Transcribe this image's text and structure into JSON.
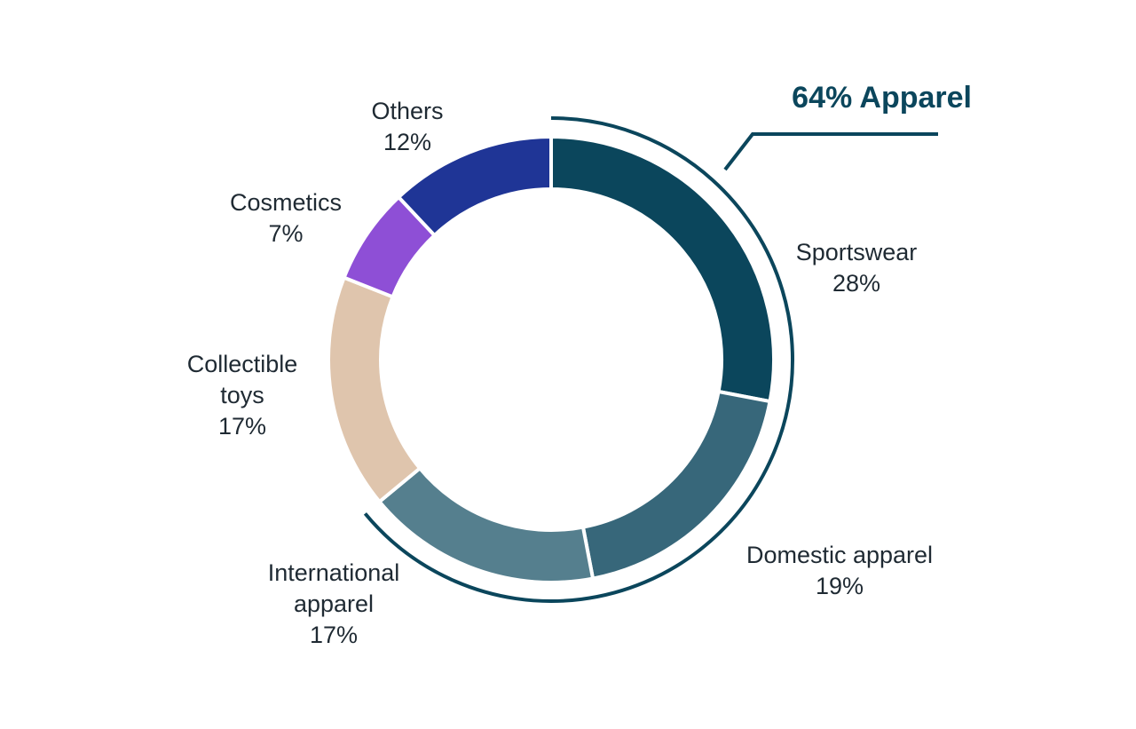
{
  "chart_data": {
    "type": "pie",
    "variant": "donut",
    "unit": "%",
    "slices": [
      {
        "label_lines": [
          "Sportswear"
        ],
        "value": 28,
        "value_label": "28%",
        "color": "#0b465c"
      },
      {
        "label_lines": [
          "Domestic apparel"
        ],
        "value": 19,
        "value_label": "19%",
        "color": "#37677a"
      },
      {
        "label_lines": [
          "International",
          "apparel"
        ],
        "value": 17,
        "value_label": "17%",
        "color": "#557f8e"
      },
      {
        "label_lines": [
          "Collectible",
          "toys"
        ],
        "value": 17,
        "value_label": "17%",
        "color": "#dfc5ad"
      },
      {
        "label_lines": [
          "Cosmetics"
        ],
        "value": 7,
        "value_label": "7%",
        "color": "#8e4fd6"
      },
      {
        "label_lines": [
          "Others"
        ],
        "value": 12,
        "value_label": "12%",
        "color": "#1f3596"
      }
    ],
    "group_annotation": {
      "text": "64% Apparel",
      "value": 64,
      "members": [
        "Sportswear",
        "Domestic apparel",
        "International apparel"
      ],
      "color": "#0b465c"
    },
    "legend": "none"
  }
}
